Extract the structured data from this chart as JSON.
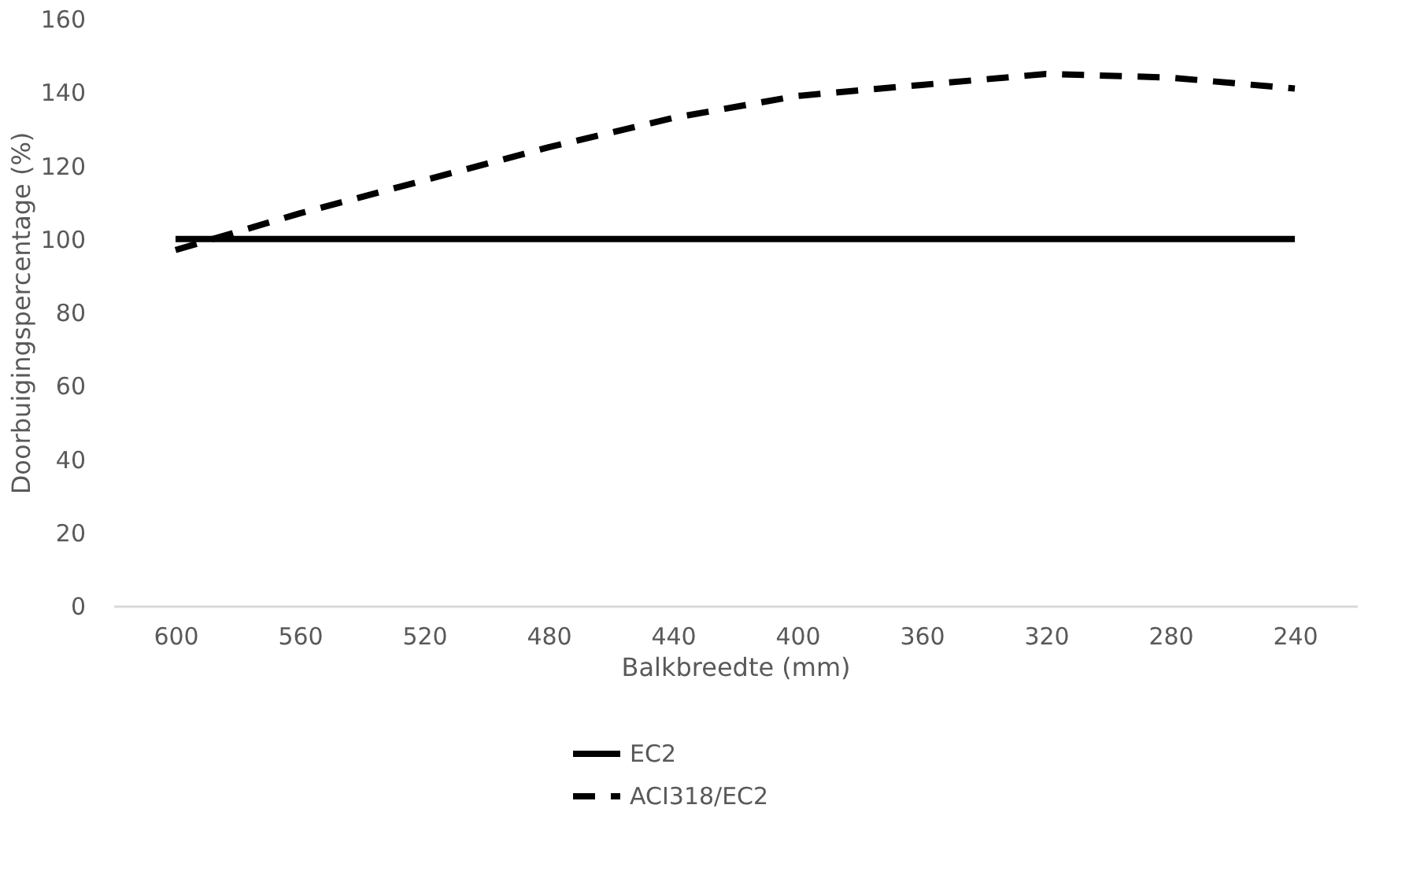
{
  "chart_data": {
    "type": "line",
    "xlabel": "Balkbreedte (mm)",
    "ylabel": "Doorbuigingspercentage (%)",
    "categories": [
      "600",
      "560",
      "520",
      "480",
      "440",
      "400",
      "360",
      "320",
      "280",
      "240"
    ],
    "series": [
      {
        "name": "EC2",
        "color": "#000000",
        "line_style": "solid",
        "values": [
          100,
          100,
          100,
          100,
          100,
          100,
          100,
          100,
          100,
          100
        ]
      },
      {
        "name": "ACI318/EC2",
        "color": "#000000",
        "line_style": "dashed",
        "values": [
          97,
          107,
          116,
          125,
          133,
          139,
          142,
          145,
          144,
          141
        ]
      }
    ],
    "ylim": [
      0,
      160
    ],
    "yticks": [
      0,
      20,
      40,
      60,
      80,
      100,
      120,
      140,
      160
    ],
    "grid": false,
    "legend": "bottom",
    "marker": "none"
  }
}
